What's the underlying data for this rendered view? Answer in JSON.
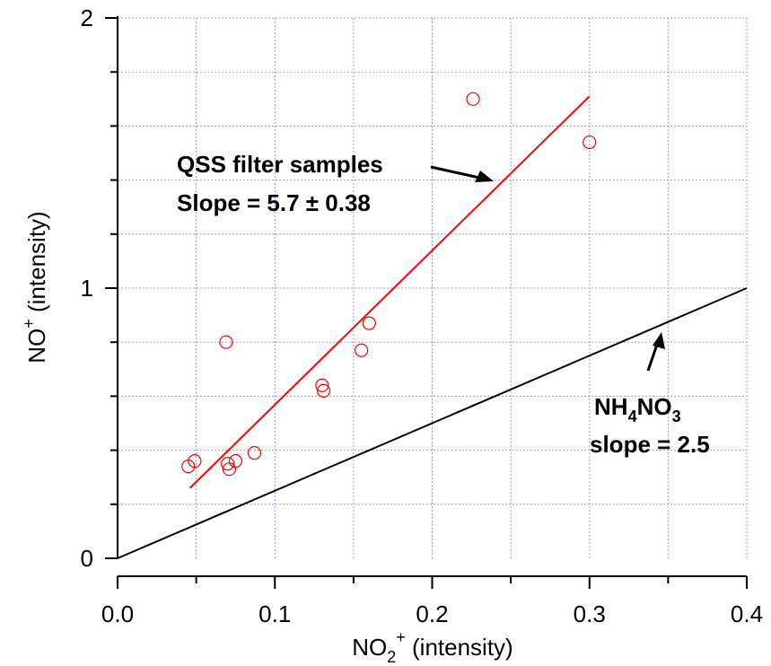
{
  "chart_data": {
    "type": "scatter",
    "xlabel": {
      "main": "NO",
      "sub": "2",
      "sup": "+",
      "tail": " (intensity)"
    },
    "ylabel": {
      "main": "NO",
      "sup": "+",
      "tail": " (intensity)"
    },
    "xlim": [
      0,
      0.4
    ],
    "ylim": [
      0,
      2
    ],
    "x_ticks": [
      "0.0",
      "0.1",
      "0.2",
      "0.3",
      "0.4"
    ],
    "x_tick_values": [
      0,
      0.1,
      0.2,
      0.3,
      0.4
    ],
    "y_ticks": [
      "0",
      "1",
      "2"
    ],
    "y_tick_values": [
      0,
      1,
      2
    ],
    "grid": true,
    "colors": {
      "samples": "#ff0000",
      "reference": "#000000",
      "grid": "#9999dd"
    },
    "series": [
      {
        "kind": "points",
        "x": [
          0.045,
          0.049,
          0.07,
          0.071,
          0.075,
          0.087,
          0.069,
          0.13,
          0.131,
          0.155,
          0.16,
          0.226,
          0.3
        ],
        "y": [
          0.34,
          0.36,
          0.35,
          0.33,
          0.36,
          0.39,
          0.8,
          0.64,
          0.62,
          0.77,
          0.87,
          1.7,
          1.54
        ]
      },
      {
        "kind": "fit-line",
        "x": [
          0.046,
          0.3
        ],
        "y": [
          0.26,
          1.71
        ]
      },
      {
        "kind": "reference-line",
        "x": [
          0,
          0.4
        ],
        "y": [
          0,
          1.0
        ]
      }
    ],
    "annotations": {
      "qss": {
        "line1": "QSS filter samples",
        "line2": "Slope = 5.7 ± 0.38"
      },
      "nh4no3": {
        "p1": "NH",
        "s1": "4",
        "p2": "NO",
        "s2": "3",
        "line2": "slope = 2.5"
      }
    }
  }
}
